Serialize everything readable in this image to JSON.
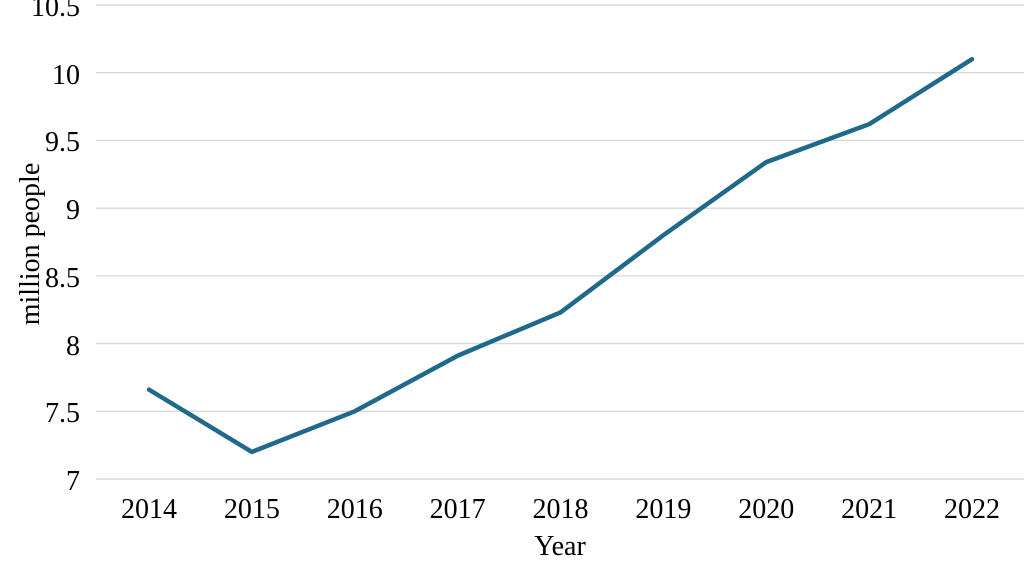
{
  "chart_data": {
    "type": "line",
    "title": "",
    "xlabel": "Year",
    "ylabel": "million people",
    "categories": [
      "2014",
      "2015",
      "2016",
      "2017",
      "2018",
      "2019",
      "2020",
      "2021",
      "2022"
    ],
    "series": [
      {
        "name": "million people",
        "color": "#1F6A8A",
        "values": [
          7.66,
          7.2,
          7.5,
          7.91,
          8.23,
          8.8,
          9.34,
          9.62,
          10.1
        ]
      }
    ],
    "ylim": [
      7,
      10.5
    ],
    "yticks": [
      7,
      7.5,
      8,
      8.5,
      9,
      9.5,
      10,
      10.5
    ],
    "ytick_labels": [
      "7",
      "7.5",
      "8",
      "8.5",
      "9",
      "9.5",
      "10",
      "10.5"
    ],
    "grid": "horizontal",
    "gridline_color": "#D9D9D9",
    "background_color": "#ffffff",
    "legend": "none",
    "line_width": 4.5
  }
}
